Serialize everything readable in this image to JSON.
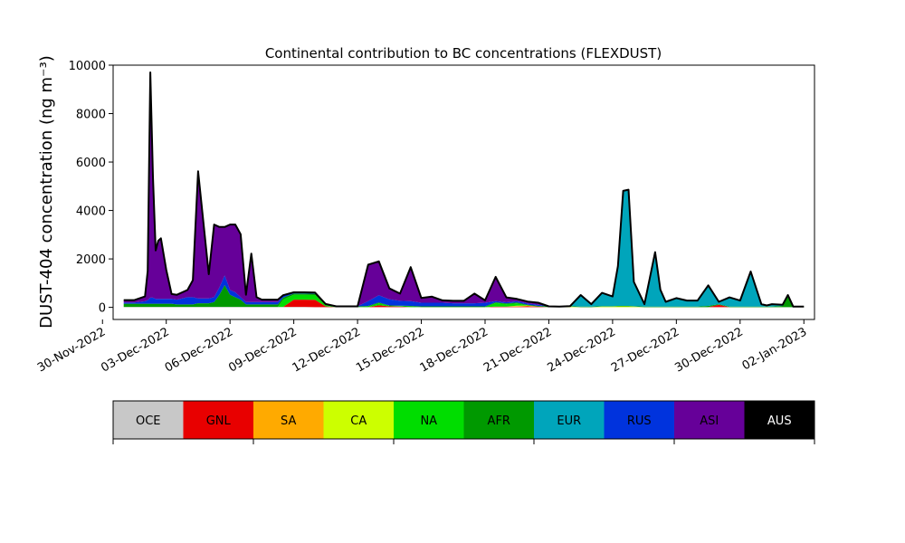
{
  "chart_data": {
    "type": "area",
    "stacked": true,
    "title": "Continental contribution to BC concentrations (FLEXDUST)",
    "xlabel": "",
    "ylabel": "DUST-404 concentration (ng m⁻³)",
    "xlim": [
      "2022-11-30T12:00",
      "2023-01-02T12:00"
    ],
    "ylim": [
      -500,
      10000
    ],
    "y_ticks": [
      0,
      2000,
      4000,
      6000,
      8000,
      10000
    ],
    "x_ticks": [
      "30-Nov-2022",
      "03-Dec-2022",
      "06-Dec-2022",
      "09-Dec-2022",
      "12-Dec-2022",
      "15-Dec-2022",
      "18-Dec-2022",
      "21-Dec-2022",
      "24-Dec-2022",
      "27-Dec-2022",
      "30-Dec-2022",
      "02-Jan-2023"
    ],
    "x_tick_dates": [
      "2022-11-30",
      "2022-12-03",
      "2022-12-06",
      "2022-12-09",
      "2022-12-12",
      "2022-12-15",
      "2022-12-18",
      "2022-12-21",
      "2022-12-24",
      "2022-12-27",
      "2022-12-30",
      "2023-01-02"
    ],
    "x": [
      "2022-12-01T00:00",
      "2022-12-01T12:00",
      "2022-12-02T00:00",
      "2022-12-02T03:00",
      "2022-12-02T06:00",
      "2022-12-02T09:00",
      "2022-12-02T12:00",
      "2022-12-02T15:00",
      "2022-12-02T18:00",
      "2022-12-03T00:00",
      "2022-12-03T06:00",
      "2022-12-03T12:00",
      "2022-12-04T00:00",
      "2022-12-04T06:00",
      "2022-12-04T12:00",
      "2022-12-05T00:00",
      "2022-12-05T06:00",
      "2022-12-05T12:00",
      "2022-12-05T18:00",
      "2022-12-06T00:00",
      "2022-12-06T06:00",
      "2022-12-06T12:00",
      "2022-12-06T18:00",
      "2022-12-07T00:00",
      "2022-12-07T06:00",
      "2022-12-07T12:00",
      "2022-12-08T00:00",
      "2022-12-08T06:00",
      "2022-12-08T12:00",
      "2022-12-09T00:00",
      "2022-12-09T12:00",
      "2022-12-10T00:00",
      "2022-12-10T12:00",
      "2022-12-11T00:00",
      "2022-12-11T12:00",
      "2022-12-12T00:00",
      "2022-12-12T12:00",
      "2022-12-13T00:00",
      "2022-12-13T12:00",
      "2022-12-14T00:00",
      "2022-12-14T12:00",
      "2022-12-15T00:00",
      "2022-12-15T12:00",
      "2022-12-16T00:00",
      "2022-12-16T12:00",
      "2022-12-17T00:00",
      "2022-12-17T12:00",
      "2022-12-18T00:00",
      "2022-12-18T12:00",
      "2022-12-19T00:00",
      "2022-12-19T12:00",
      "2022-12-20T00:00",
      "2022-12-20T12:00",
      "2022-12-21T00:00",
      "2022-12-21T12:00",
      "2022-12-22T00:00",
      "2022-12-22T12:00",
      "2022-12-23T00:00",
      "2022-12-23T12:00",
      "2022-12-24T00:00",
      "2022-12-24T06:00",
      "2022-12-24T12:00",
      "2022-12-24T18:00",
      "2022-12-25T00:00",
      "2022-12-25T12:00",
      "2022-12-26T00:00",
      "2022-12-26T06:00",
      "2022-12-26T12:00",
      "2022-12-27T00:00",
      "2022-12-27T12:00",
      "2022-12-28T00:00",
      "2022-12-28T12:00",
      "2022-12-29T00:00",
      "2022-12-29T12:00",
      "2022-12-30T00:00",
      "2022-12-30T12:00",
      "2022-12-31T00:00",
      "2022-12-31T06:00",
      "2022-12-31T12:00",
      "2023-01-01T00:00",
      "2023-01-01T06:00",
      "2023-01-01T12:00",
      "2023-01-02T00:00"
    ],
    "series": [
      {
        "name": "OCE",
        "values": [
          20,
          20,
          20,
          20,
          20,
          20,
          20,
          20,
          20,
          20,
          20,
          20,
          20,
          20,
          20,
          20,
          20,
          20,
          20,
          20,
          20,
          20,
          20,
          20,
          20,
          20,
          20,
          20,
          20,
          20,
          20,
          10,
          10,
          10,
          10,
          10,
          10,
          10,
          10,
          10,
          10,
          10,
          10,
          10,
          10,
          10,
          10,
          10,
          10,
          10,
          10,
          10,
          10,
          10,
          10,
          10,
          10,
          10,
          10,
          10,
          10,
          10,
          10,
          10,
          10,
          10,
          10,
          10,
          10,
          10,
          10,
          10,
          10,
          10,
          10,
          10,
          10,
          10,
          10,
          10,
          10,
          10,
          10
        ]
      },
      {
        "name": "GNL",
        "values": [
          0,
          0,
          0,
          0,
          0,
          0,
          0,
          0,
          0,
          0,
          0,
          0,
          0,
          0,
          0,
          0,
          0,
          0,
          0,
          0,
          0,
          0,
          0,
          0,
          0,
          0,
          0,
          0,
          0,
          300,
          300,
          300,
          30,
          0,
          0,
          0,
          0,
          80,
          30,
          20,
          0,
          0,
          0,
          0,
          0,
          0,
          0,
          0,
          20,
          20,
          20,
          30,
          20,
          0,
          0,
          0,
          0,
          0,
          0,
          0,
          0,
          0,
          0,
          0,
          0,
          0,
          0,
          0,
          0,
          0,
          0,
          0,
          100,
          0,
          0,
          0,
          0,
          0,
          0,
          0,
          0,
          0,
          0
        ]
      },
      {
        "name": "SA",
        "values": [
          0,
          0,
          0,
          0,
          0,
          0,
          0,
          0,
          0,
          0,
          0,
          0,
          0,
          0,
          0,
          0,
          0,
          0,
          0,
          0,
          0,
          0,
          0,
          0,
          0,
          0,
          0,
          0,
          0,
          0,
          0,
          0,
          0,
          0,
          0,
          0,
          0,
          0,
          0,
          0,
          0,
          0,
          0,
          0,
          0,
          0,
          0,
          0,
          0,
          0,
          20,
          20,
          0,
          0,
          0,
          0,
          0,
          0,
          0,
          0,
          0,
          0,
          0,
          0,
          0,
          0,
          0,
          0,
          0,
          0,
          0,
          0,
          0,
          0,
          0,
          0,
          0,
          0,
          0,
          0,
          0,
          0,
          0
        ]
      },
      {
        "name": "CA",
        "values": [
          0,
          0,
          0,
          0,
          0,
          0,
          0,
          0,
          0,
          0,
          0,
          0,
          0,
          0,
          0,
          0,
          0,
          0,
          0,
          0,
          0,
          0,
          0,
          0,
          0,
          0,
          0,
          0,
          0,
          0,
          0,
          0,
          0,
          0,
          0,
          0,
          0,
          0,
          0,
          0,
          0,
          0,
          0,
          0,
          0,
          0,
          0,
          0,
          0,
          0,
          20,
          20,
          0,
          0,
          0,
          20,
          0,
          0,
          20,
          20,
          30,
          30,
          30,
          20,
          0,
          0,
          0,
          0,
          0,
          0,
          0,
          0,
          0,
          0,
          0,
          0,
          0,
          0,
          0,
          0,
          0,
          0,
          0
        ]
      },
      {
        "name": "NA",
        "values": [
          0,
          0,
          0,
          0,
          0,
          0,
          0,
          0,
          0,
          0,
          0,
          0,
          0,
          0,
          0,
          0,
          0,
          0,
          0,
          0,
          0,
          0,
          0,
          0,
          0,
          0,
          0,
          0,
          300,
          200,
          200,
          200,
          40,
          0,
          0,
          0,
          20,
          80,
          20,
          20,
          20,
          0,
          0,
          0,
          0,
          0,
          0,
          0,
          150,
          100,
          100,
          0,
          0,
          0,
          0,
          0,
          0,
          0,
          0,
          0,
          0,
          0,
          0,
          0,
          0,
          0,
          0,
          0,
          0,
          0,
          0,
          0,
          0,
          0,
          0,
          0,
          0,
          0,
          0,
          0,
          0,
          0,
          0
        ]
      },
      {
        "name": "AFR",
        "values": [
          130,
          130,
          130,
          130,
          130,
          130,
          130,
          130,
          130,
          130,
          130,
          100,
          100,
          100,
          150,
          150,
          200,
          500,
          900,
          500,
          400,
          300,
          100,
          100,
          100,
          100,
          100,
          100,
          80,
          50,
          50,
          50,
          30,
          30,
          30,
          30,
          30,
          30,
          20,
          20,
          30,
          30,
          30,
          30,
          30,
          30,
          30,
          30,
          30,
          30,
          30,
          30,
          30,
          30,
          20,
          20,
          20,
          20,
          20,
          20,
          20,
          20,
          20,
          20,
          20,
          20,
          20,
          20,
          20,
          20,
          20,
          50,
          20,
          20,
          20,
          20,
          20,
          20,
          20,
          50,
          500,
          20,
          20
        ]
      },
      {
        "name": "EUR",
        "values": [
          0,
          0,
          0,
          0,
          0,
          0,
          0,
          0,
          0,
          0,
          0,
          0,
          0,
          0,
          0,
          0,
          0,
          0,
          0,
          0,
          0,
          0,
          0,
          0,
          0,
          0,
          0,
          0,
          0,
          0,
          0,
          0,
          0,
          0,
          0,
          0,
          0,
          0,
          0,
          0,
          0,
          0,
          0,
          0,
          0,
          0,
          0,
          0,
          0,
          0,
          0,
          0,
          0,
          0,
          0,
          0,
          450,
          100,
          550,
          400,
          1650,
          4750,
          4800,
          1000,
          100,
          2250,
          700,
          200,
          350,
          250,
          250,
          850,
          100,
          380,
          250,
          1450,
          100,
          50,
          100,
          50,
          0,
          0,
          0
        ]
      },
      {
        "name": "RUS",
        "values": [
          50,
          50,
          100,
          150,
          250,
          250,
          200,
          200,
          200,
          200,
          200,
          200,
          300,
          300,
          200,
          200,
          200,
          300,
          400,
          200,
          200,
          100,
          100,
          100,
          100,
          100,
          100,
          100,
          100,
          50,
          50,
          50,
          30,
          0,
          0,
          0,
          200,
          300,
          250,
          200,
          200,
          150,
          150,
          150,
          130,
          130,
          130,
          150,
          50,
          50,
          50,
          50,
          50,
          0,
          0,
          0,
          30,
          0,
          0,
          0,
          0,
          0,
          0,
          0,
          0,
          0,
          0,
          0,
          0,
          0,
          0,
          0,
          0,
          0,
          0,
          0,
          0,
          0,
          0,
          0,
          0,
          0,
          0
        ]
      },
      {
        "name": "ASI",
        "values": [
          100,
          100,
          200,
          1200,
          9300,
          5000,
          2000,
          2400,
          2500,
          1200,
          200,
          200,
          300,
          700,
          5250,
          1000,
          3000,
          2500,
          2000,
          2700,
          2800,
          2600,
          300,
          2000,
          200,
          100,
          100,
          100,
          0,
          0,
          0,
          0,
          0,
          0,
          0,
          0,
          1500,
          1400,
          450,
          300,
          1400,
          200,
          250,
          100,
          100,
          100,
          400,
          100,
          1000,
          200,
          100,
          80,
          80,
          0,
          0,
          0,
          0,
          0,
          0,
          0,
          0,
          0,
          0,
          0,
          0,
          0,
          0,
          0,
          0,
          0,
          0,
          0,
          0,
          0,
          0,
          0,
          0,
          0,
          0,
          0,
          0,
          0,
          0
        ]
      },
      {
        "name": "AUS",
        "values": [
          0,
          0,
          0,
          0,
          0,
          0,
          0,
          0,
          0,
          0,
          0,
          0,
          0,
          0,
          0,
          0,
          0,
          0,
          0,
          0,
          0,
          0,
          0,
          0,
          0,
          0,
          0,
          0,
          0,
          0,
          0,
          0,
          0,
          0,
          0,
          0,
          0,
          0,
          0,
          0,
          0,
          0,
          0,
          0,
          0,
          0,
          0,
          0,
          0,
          0,
          0,
          0,
          0,
          0,
          0,
          0,
          0,
          0,
          0,
          0,
          0,
          0,
          0,
          0,
          0,
          0,
          0,
          0,
          0,
          0,
          0,
          0,
          0,
          0,
          0,
          0,
          0,
          0,
          0,
          0,
          0,
          0,
          0
        ]
      }
    ],
    "legend": {
      "placement": "bottom",
      "items": [
        {
          "label": "OCE",
          "color": "#c8c8c8",
          "text_color": "#000000"
        },
        {
          "label": "GNL",
          "color": "#e80000",
          "text_color": "#000000"
        },
        {
          "label": "SA",
          "color": "#ffaa00",
          "text_color": "#000000"
        },
        {
          "label": "CA",
          "color": "#ccff00",
          "text_color": "#000000"
        },
        {
          "label": "NA",
          "color": "#00dd00",
          "text_color": "#000000"
        },
        {
          "label": "AFR",
          "color": "#009900",
          "text_color": "#000000"
        },
        {
          "label": "EUR",
          "color": "#00a5bb",
          "text_color": "#000000"
        },
        {
          "label": "RUS",
          "color": "#0033dd",
          "text_color": "#000000"
        },
        {
          "label": "ASI",
          "color": "#660099",
          "text_color": "#000000"
        },
        {
          "label": "AUS",
          "color": "#000000",
          "text_color": "#ffffff"
        }
      ]
    },
    "total_line_color": "#000000",
    "grid": false
  }
}
